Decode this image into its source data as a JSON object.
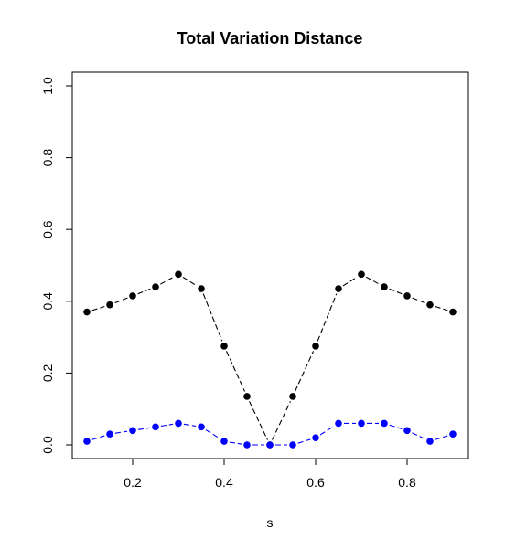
{
  "chart_data": {
    "type": "line",
    "title": "Total Variation Distance",
    "xlabel": "s",
    "ylabel": "",
    "xlim": [
      0.1,
      0.9
    ],
    "ylim": [
      0.0,
      1.0
    ],
    "xticks": [
      "0.2",
      "0.4",
      "0.6",
      "0.8"
    ],
    "yticks": [
      "0.0",
      "0.2",
      "0.4",
      "0.6",
      "0.8",
      "1.0"
    ],
    "grid": false,
    "x": [
      0.1,
      0.15,
      0.2,
      0.25,
      0.3,
      0.35,
      0.4,
      0.45,
      0.5,
      0.55,
      0.6,
      0.65,
      0.7,
      0.75,
      0.8,
      0.85,
      0.9
    ],
    "series": [
      {
        "color": "#000000",
        "values": [
          0.37,
          0.39,
          0.415,
          0.44,
          0.475,
          0.435,
          0.275,
          0.135,
          0.0,
          0.135,
          0.275,
          0.435,
          0.475,
          0.44,
          0.415,
          0.39,
          0.37
        ]
      },
      {
        "color": "#0000ff",
        "values": [
          0.01,
          0.03,
          0.04,
          0.05,
          0.06,
          0.05,
          0.01,
          0.0,
          0.0,
          0.0,
          0.02,
          0.06,
          0.06,
          0.06,
          0.04,
          0.01,
          0.03
        ]
      }
    ]
  }
}
